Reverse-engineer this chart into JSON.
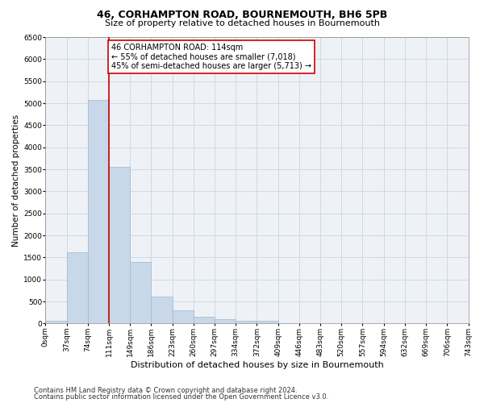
{
  "title1": "46, CORHAMPTON ROAD, BOURNEMOUTH, BH6 5PB",
  "title2": "Size of property relative to detached houses in Bournemouth",
  "xlabel": "Distribution of detached houses by size in Bournemouth",
  "ylabel": "Number of detached properties",
  "bar_values": [
    70,
    1620,
    5080,
    3560,
    1400,
    620,
    305,
    150,
    90,
    60,
    60,
    0,
    0,
    0,
    0,
    0,
    0,
    0,
    0,
    0
  ],
  "bar_labels": [
    "0sqm",
    "37sqm",
    "74sqm",
    "111sqm",
    "149sqm",
    "186sqm",
    "223sqm",
    "260sqm",
    "297sqm",
    "334sqm",
    "372sqm",
    "409sqm",
    "446sqm",
    "483sqm",
    "520sqm",
    "557sqm",
    "594sqm",
    "632sqm",
    "669sqm",
    "706sqm",
    "743sqm"
  ],
  "bar_color": "#c8d8e8",
  "bar_edge_color": "#a0b8cc",
  "grid_color": "#d0d8e8",
  "background_color": "#eef2f7",
  "vline_color": "#cc0000",
  "annotation_text": "46 CORHAMPTON ROAD: 114sqm\n← 55% of detached houses are smaller (7,018)\n45% of semi-detached houses are larger (5,713) →",
  "annotation_box_color": "#ffffff",
  "annotation_box_edge": "#cc0000",
  "ylim": [
    0,
    6500
  ],
  "yticks": [
    0,
    500,
    1000,
    1500,
    2000,
    2500,
    3000,
    3500,
    4000,
    4500,
    5000,
    5500,
    6000,
    6500
  ],
  "footer1": "Contains HM Land Registry data © Crown copyright and database right 2024.",
  "footer2": "Contains public sector information licensed under the Open Government Licence v3.0.",
  "title1_fontsize": 9,
  "title2_fontsize": 8,
  "xlabel_fontsize": 8,
  "ylabel_fontsize": 7.5,
  "tick_fontsize": 6.5,
  "annotation_fontsize": 7,
  "footer_fontsize": 6
}
